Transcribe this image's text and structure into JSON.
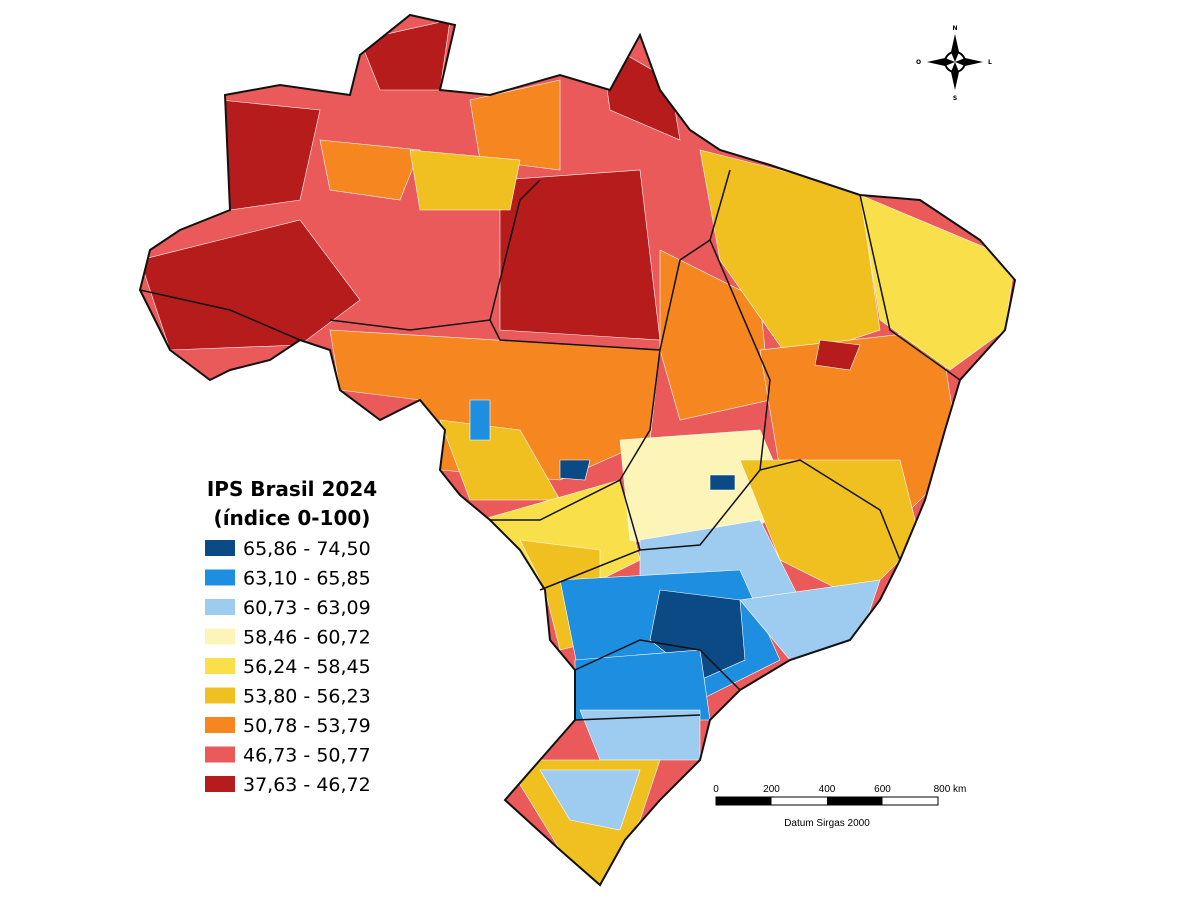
{
  "legend": {
    "title": [
      "IPS Brasil 2024",
      "(índice 0-100)"
    ],
    "items": [
      {
        "label": "65,86 - 74,50",
        "color": "#0c4a86"
      },
      {
        "label": "63,10 - 65,85",
        "color": "#1e8fe0"
      },
      {
        "label": "60,73 - 63,09",
        "color": "#9ecbf0"
      },
      {
        "label": "58,46 - 60,72",
        "color": "#fdf4b8"
      },
      {
        "label": "56,24 - 58,45",
        "color": "#f9e04a"
      },
      {
        "label": "53,80 - 56,23",
        "color": "#f0c020"
      },
      {
        "label": "50,78 - 53,79",
        "color": "#f6861f"
      },
      {
        "label": "46,73 - 50,77",
        "color": "#ea5a5a"
      },
      {
        "label": "37,63 - 46,72",
        "color": "#b71c1c"
      }
    ]
  },
  "scale_bar": {
    "labels": [
      "0",
      "200",
      "400",
      "600",
      "800 km"
    ],
    "caption": "Datum Sirgas 2000"
  },
  "compass": {
    "north": "N",
    "south": "S",
    "east": "L",
    "west": "O"
  }
}
